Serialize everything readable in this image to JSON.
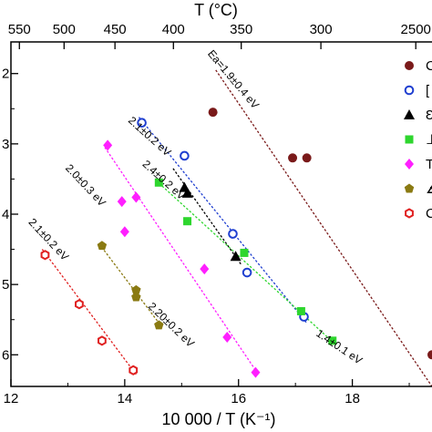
{
  "chart_data": {
    "type": "scatter",
    "xlabel": "10 000 / T (K⁻¹)",
    "top_xlabel": "T (°C)",
    "xlim": [
      12,
      19.4
    ],
    "ylim": [
      6.45,
      1.55
    ],
    "x_ticks": [
      "12",
      "14",
      "16",
      "18"
    ],
    "y_ticks": [
      "2",
      "3",
      "4",
      "5",
      "6"
    ],
    "top_ticks": [
      "550",
      "500",
      "450",
      "400",
      "350",
      "300",
      "250"
    ],
    "top_ticks_celsius": [
      550,
      500,
      450,
      400,
      350,
      300,
      250
    ],
    "top_tick_label_visible": [
      "550",
      "500",
      "450",
      "400",
      "350",
      "300",
      "2500"
    ],
    "legend_placement": "right (clipped)",
    "legend_fragments": [
      "C",
      "[",
      "Ɛ",
      "⊥",
      "T",
      "∡",
      "C"
    ],
    "series": [
      {
        "marker": "circle",
        "color": "#7a1a1a",
        "filled": true,
        "points": [
          [
            15.55,
            2.55
          ],
          [
            16.95,
            3.2
          ],
          [
            17.2,
            3.2
          ],
          [
            19.4,
            6.0
          ]
        ]
      },
      {
        "marker": "circle",
        "color": "#1f3fd0",
        "filled": false,
        "points": [
          [
            14.3,
            2.7
          ],
          [
            15.05,
            3.17
          ],
          [
            15.9,
            4.28
          ],
          [
            16.15,
            4.83
          ],
          [
            17.15,
            5.46
          ]
        ]
      },
      {
        "marker": "triangle",
        "color": "#000000",
        "filled": true,
        "points": [
          [
            15.05,
            3.62
          ],
          [
            15.1,
            3.7
          ],
          [
            15.95,
            4.6
          ]
        ]
      },
      {
        "marker": "square",
        "color": "#2ed62e",
        "filled": true,
        "points": [
          [
            14.6,
            3.55
          ],
          [
            15.1,
            4.1
          ],
          [
            16.1,
            4.55
          ],
          [
            17.1,
            5.38
          ],
          [
            17.65,
            5.8
          ]
        ]
      },
      {
        "marker": "diamond",
        "color": "#ff1fff",
        "filled": true,
        "points": [
          [
            13.7,
            3.02
          ],
          [
            13.95,
            3.82
          ],
          [
            14.2,
            3.76
          ],
          [
            14.0,
            4.25
          ],
          [
            15.4,
            4.78
          ],
          [
            15.8,
            5.75
          ],
          [
            16.3,
            6.25
          ]
        ]
      },
      {
        "marker": "pentagon",
        "color": "#8a7a12",
        "filled": true,
        "points": [
          [
            13.6,
            4.45
          ],
          [
            14.2,
            5.08
          ],
          [
            14.2,
            5.18
          ],
          [
            14.6,
            5.58
          ]
        ]
      },
      {
        "marker": "hexagon",
        "color": "#e02020",
        "filled": false,
        "points": [
          [
            12.6,
            4.58
          ],
          [
            13.2,
            5.28
          ],
          [
            13.6,
            5.8
          ],
          [
            14.15,
            6.22
          ]
        ]
      }
    ],
    "fit_lines": [
      {
        "color": "#7a1a1a",
        "from": [
          15.6,
          1.95
        ],
        "to": [
          19.4,
          6.45
        ]
      },
      {
        "color": "#1f3fd0",
        "from": [
          14.25,
          2.62
        ],
        "to": [
          17.2,
          5.55
        ]
      },
      {
        "color": "#000000",
        "from": [
          14.85,
          3.35
        ],
        "to": [
          16.05,
          4.72
        ]
      },
      {
        "color": "#2ed62e",
        "from": [
          14.55,
          3.52
        ],
        "to": [
          17.7,
          5.85
        ]
      },
      {
        "color": "#ff1fff",
        "from": [
          13.65,
          3.05
        ],
        "to": [
          16.35,
          6.28
        ]
      },
      {
        "color": "#8a7a12",
        "from": [
          13.55,
          4.42
        ],
        "to": [
          14.65,
          5.6
        ]
      },
      {
        "color": "#e02020",
        "from": [
          12.55,
          4.5
        ],
        "to": [
          14.2,
          6.28
        ]
      }
    ],
    "annotations": [
      {
        "text": "Ea=1.9±0.4 eV",
        "at": [
          15.45,
          1.72
        ],
        "angle": 50
      },
      {
        "text": "2.1±0.2 eV",
        "at": [
          14.05,
          2.68
        ],
        "angle": 42
      },
      {
        "text": "2.4±0.2 eV",
        "at": [
          14.3,
          3.3
        ],
        "angle": 42
      },
      {
        "text": "2.0±0.3 eV",
        "at": [
          12.95,
          3.35
        ],
        "angle": 47
      },
      {
        "text": "2.1±0.2 eV",
        "at": [
          12.3,
          4.12
        ],
        "angle": 47
      },
      {
        "text": "2.20±0.2 eV",
        "at": [
          14.4,
          5.32
        ],
        "angle": 44
      },
      {
        "text": "1.4±0.1 eV",
        "at": [
          17.35,
          5.72
        ],
        "angle": 34
      }
    ]
  }
}
